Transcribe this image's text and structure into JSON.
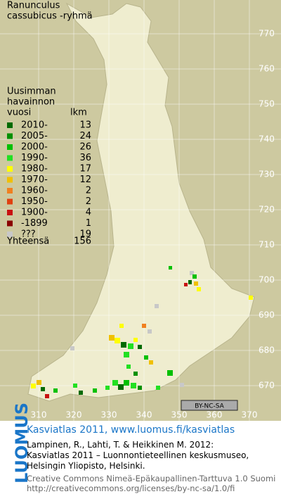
{
  "title": [
    "Ranunculus",
    "cassubicus -ryhmä"
  ],
  "legend": {
    "header": [
      "Uusimman",
      "havainnon",
      "vuosi"
    ],
    "count_header": "lkm",
    "rows": [
      {
        "label": "2010-",
        "count": 13,
        "color": "#006a00"
      },
      {
        "label": "2005-",
        "count": 24,
        "color": "#009000"
      },
      {
        "label": "2000-",
        "count": 26,
        "color": "#00c000"
      },
      {
        "label": "1990-",
        "count": 36,
        "color": "#22e022"
      },
      {
        "label": "1980-",
        "count": 17,
        "color": "#ffff00"
      },
      {
        "label": "1970-",
        "count": 12,
        "color": "#f0c000"
      },
      {
        "label": "1960-",
        "count": 2,
        "color": "#f08020"
      },
      {
        "label": "1950-",
        "count": 2,
        "color": "#e04010"
      },
      {
        "label": "1900-",
        "count": 4,
        "color": "#c81010"
      },
      {
        "label": "-1899",
        "count": 1,
        "color": "#8a0000"
      },
      {
        "label": "???",
        "count": 19,
        "color": "#c8c8c8"
      }
    ],
    "total_label": "Yhteensä",
    "total": 156
  },
  "grid": {
    "north": [
      "770",
      "760",
      "750",
      "740",
      "730",
      "720",
      "710",
      "700",
      "690",
      "680",
      "670"
    ],
    "east": [
      "310",
      "320",
      "330",
      "340",
      "350",
      "360",
      "370"
    ]
  },
  "badge": "BY-NC-SA",
  "footer": {
    "logo": "LUOMUS",
    "headline": "Kasviatlas 2011, www.luomus.fi/kasviatlas",
    "citation": [
      "Lampinen, R., Lahti, T. & Heikkinen M. 2012:",
      "Kasviatlas 2011 – Luonnontieteellinen keskusmuseo,",
      "Helsingin Yliopisto, Helsinki."
    ],
    "license": [
      "Creative Commons Nimeä-Epäkaupallinen-Tarttuva 1.0 Suomi",
      "http://creativecommons.org/licenses/by-nc-sa/1.0/fi"
    ]
  }
}
